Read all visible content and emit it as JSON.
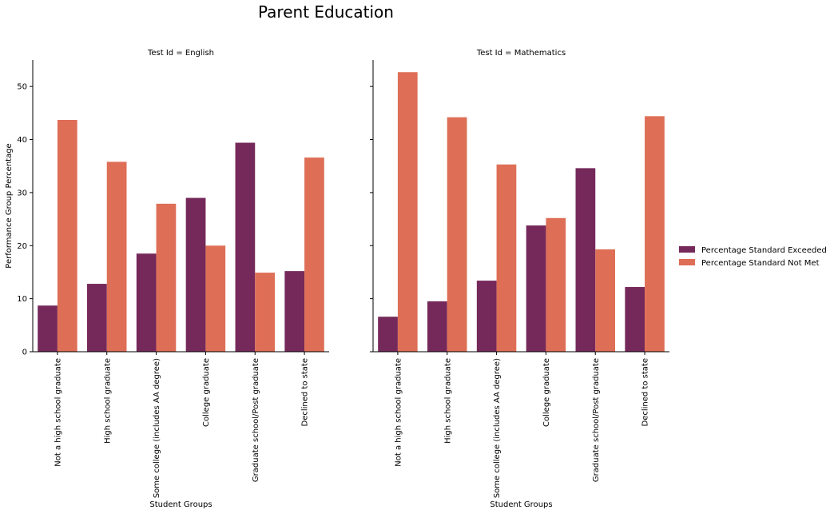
{
  "title": "Parent Education",
  "chart_data": {
    "type": "bar",
    "title": "Parent Education",
    "ylabel": "Performance Group Percentage",
    "xlabel": "Student Groups",
    "ylim": [
      0,
      55
    ],
    "yticks": [
      0,
      10,
      20,
      30,
      40,
      50
    ],
    "grid": false,
    "legend_position": "right",
    "categories": [
      "Not a high school graduate",
      "High school graduate",
      "Some college (includes AA degree)",
      "College graduate",
      "Graduate school/Post graduate",
      "Declined to state"
    ],
    "series": [
      {
        "name": "Percentage Standard Exceeded",
        "color": "#75295a"
      },
      {
        "name": "Percentage Standard Not Met",
        "color": "#de6e56"
      }
    ],
    "panels": [
      {
        "title": "Test Id = English",
        "values": [
          [
            8.7,
            12.8,
            18.5,
            29.0,
            39.4,
            15.2
          ],
          [
            43.7,
            35.8,
            27.9,
            20.0,
            14.9,
            36.6
          ]
        ]
      },
      {
        "title": "Test Id = Mathematics",
        "values": [
          [
            6.6,
            9.5,
            13.4,
            23.8,
            34.6,
            12.2
          ],
          [
            52.7,
            44.2,
            35.3,
            25.2,
            19.3,
            44.4
          ]
        ]
      }
    ]
  }
}
